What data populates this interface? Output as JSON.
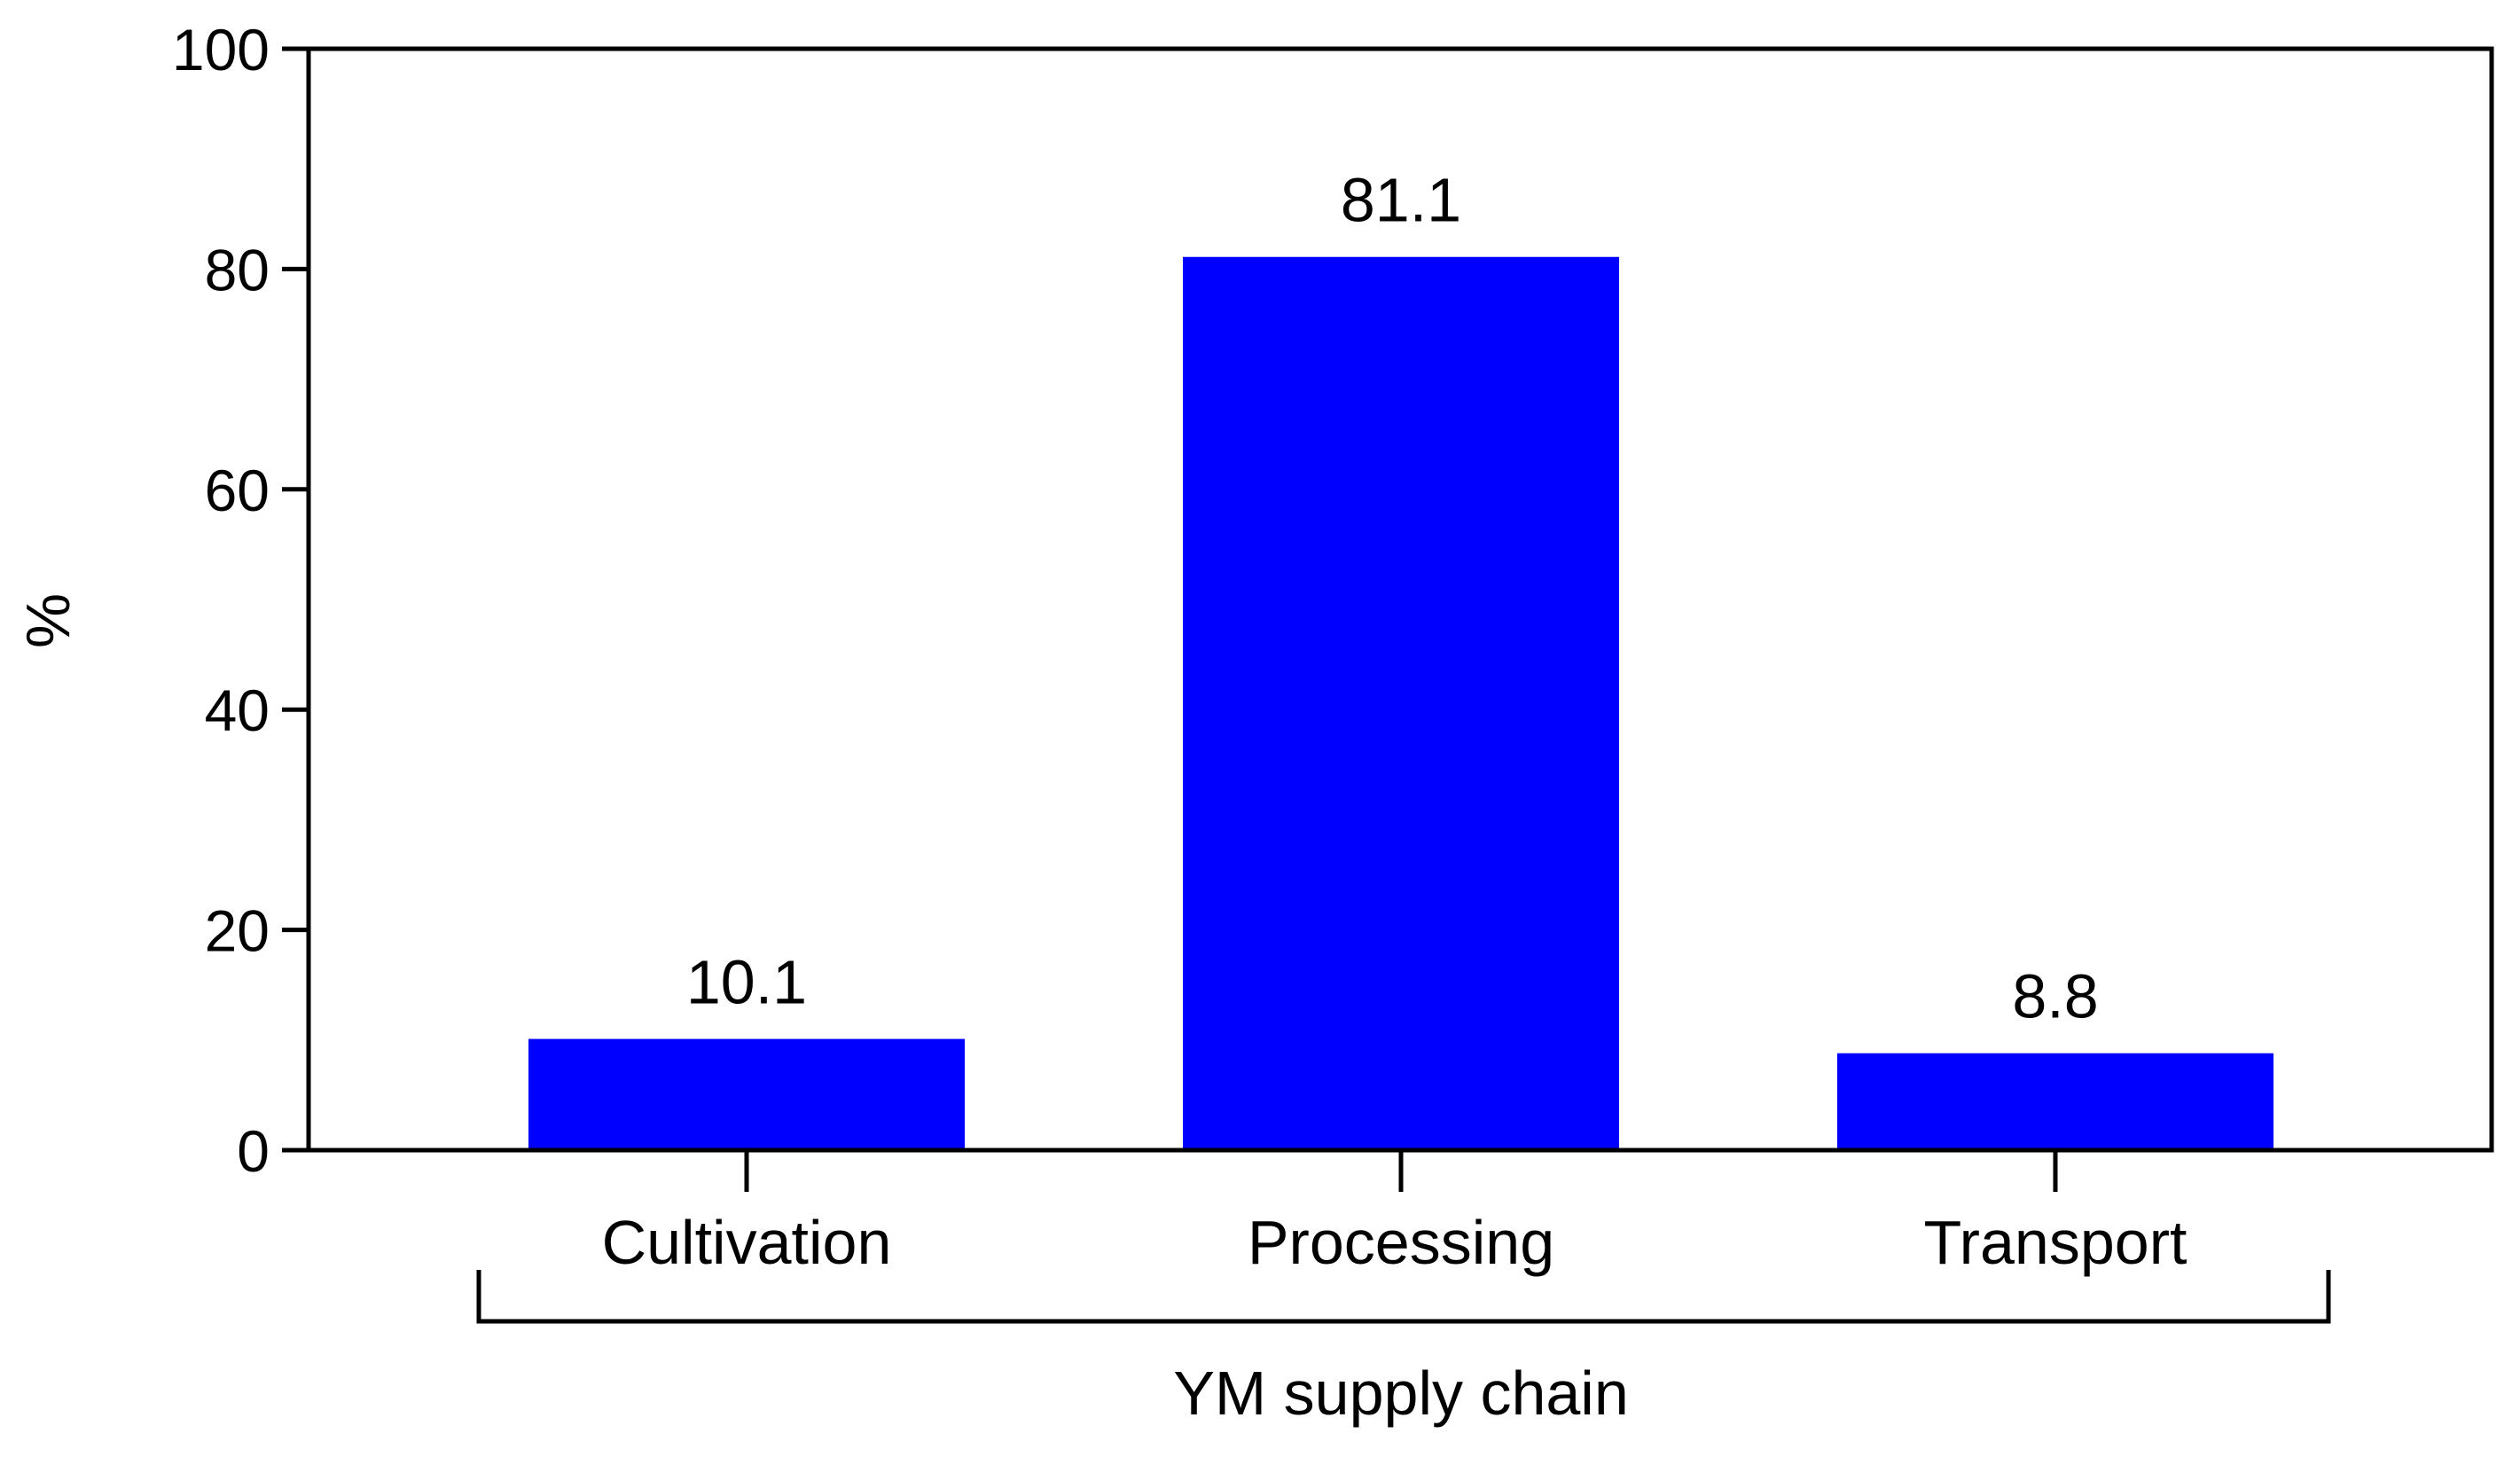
{
  "chart_data": {
    "type": "bar",
    "categories": [
      "Cultivation",
      "Processing",
      "Transport"
    ],
    "values": [
      10.1,
      81.1,
      8.8
    ],
    "value_labels": [
      "10.1",
      "81.1",
      "8.8"
    ],
    "ylabel": "%",
    "xlabel": "YM supply chain",
    "ylim": [
      0,
      100
    ],
    "yticks": [
      "0",
      "20",
      "40",
      "60",
      "80",
      "100"
    ],
    "grid": false,
    "legend": "none",
    "bar_color": "#0000FF"
  }
}
